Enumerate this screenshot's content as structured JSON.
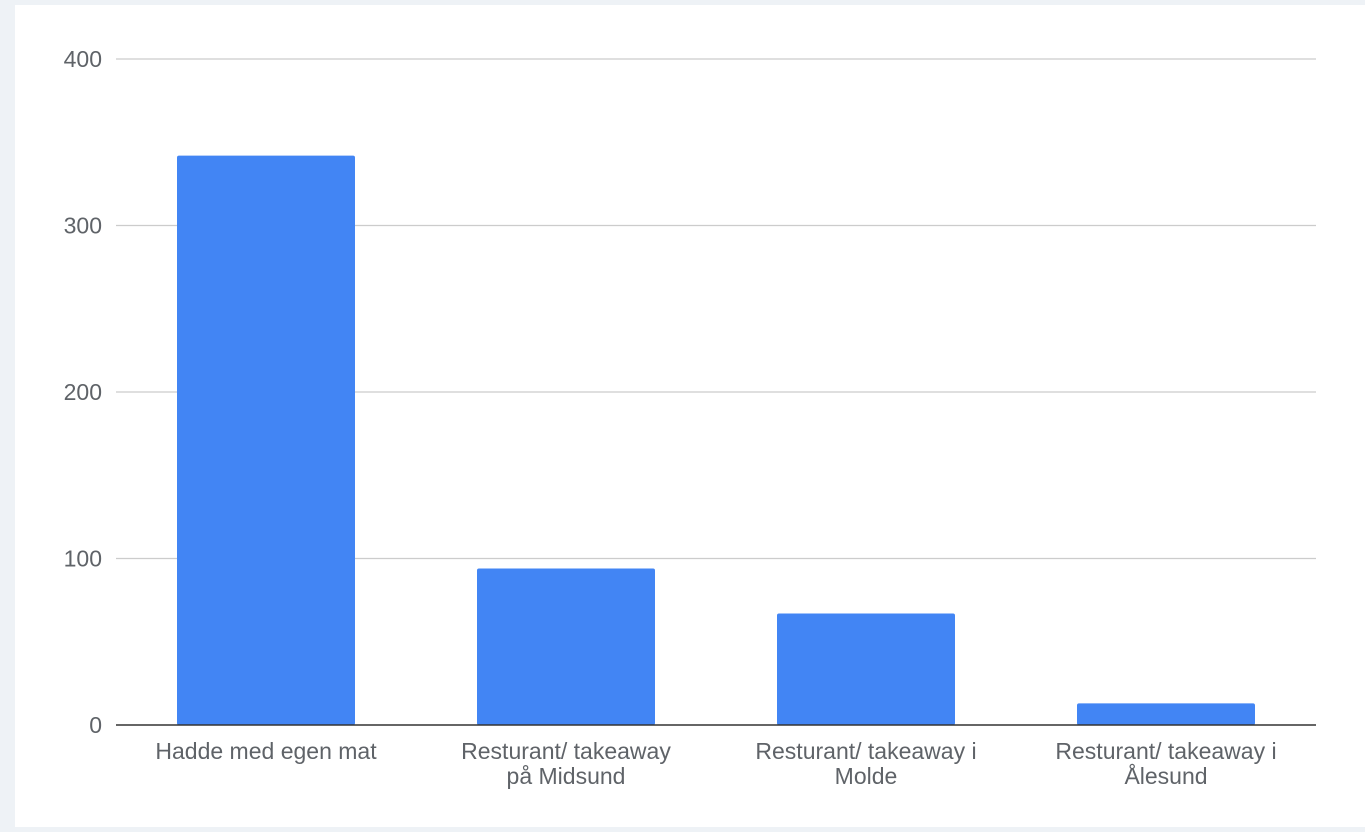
{
  "chart_data": {
    "type": "bar",
    "title": "",
    "xlabel": "",
    "ylabel": "",
    "categories": [
      [
        "Hadde med egen mat"
      ],
      [
        "Resturant/ takeaway",
        "på Midsund"
      ],
      [
        "Resturant/ takeaway i",
        "Molde"
      ],
      [
        "Resturant/ takeaway i",
        "Ålesund"
      ]
    ],
    "values": [
      342,
      94,
      67,
      13
    ],
    "ylim": [
      0,
      400
    ],
    "yticks": [
      0,
      100,
      200,
      300,
      400
    ],
    "grid": true,
    "legend": "none",
    "colors": {
      "bar": "#4285f4",
      "grid": "#cccccc",
      "axis": "#333333",
      "text": "#5f6368",
      "background": "#ffffff",
      "page_background": "#eef2f6"
    }
  }
}
